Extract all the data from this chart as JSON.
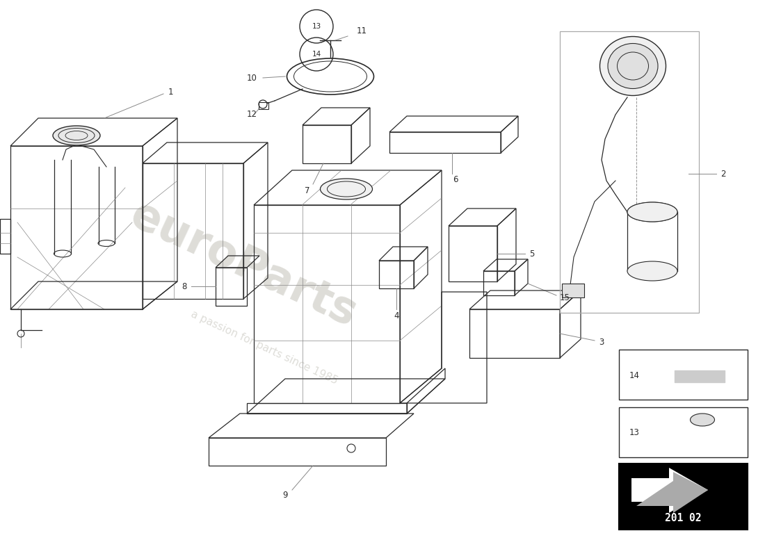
{
  "bg_color": "#ffffff",
  "part_code": "201 02",
  "figure_size": [
    11.0,
    8.0
  ],
  "dpi": 100,
  "line_color": "#2a2a2a",
  "light_line_color": "#888888",
  "watermark_color": "#d0cfc8",
  "label_fontsize": 8.5
}
